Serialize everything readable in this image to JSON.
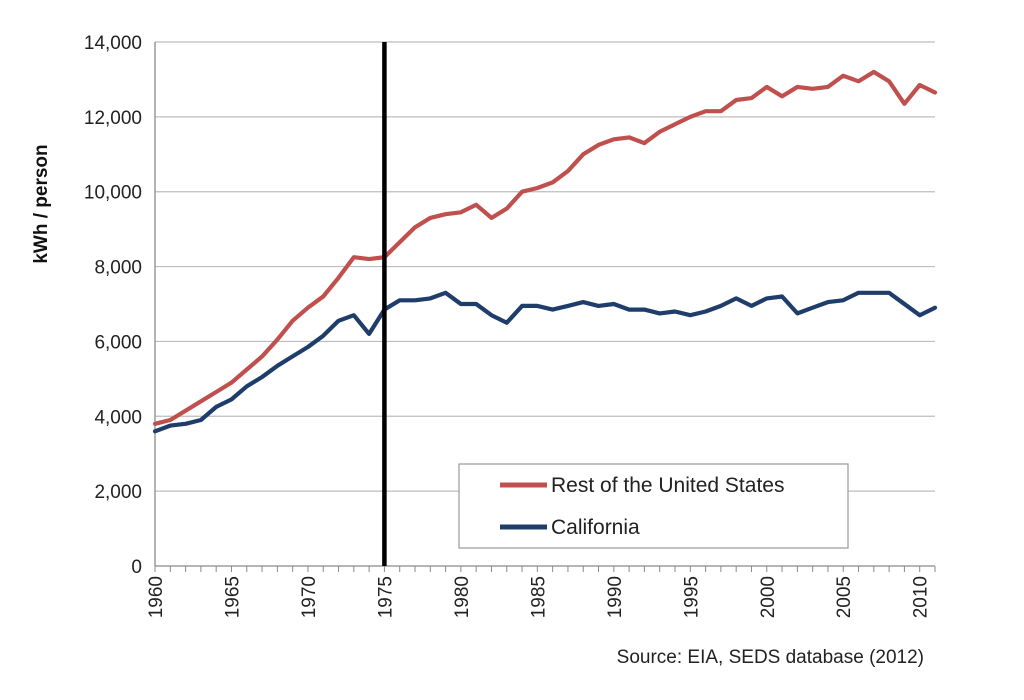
{
  "chart_data": {
    "type": "line",
    "title": "",
    "xlabel": "",
    "ylabel": "kWh / person",
    "xlim": [
      1960,
      2011
    ],
    "ylim": [
      0,
      14000
    ],
    "grid": "horizontal",
    "legend_position": "bottom-right",
    "x_ticks": [
      1960,
      1965,
      1970,
      1975,
      1980,
      1985,
      1990,
      1995,
      2000,
      2005,
      2010
    ],
    "x_tick_labels": [
      "1960",
      "1965",
      "1970",
      "1975",
      "1980",
      "1985",
      "1990",
      "1995",
      "2000",
      "2005",
      "2010"
    ],
    "y_ticks": [
      0,
      2000,
      4000,
      6000,
      8000,
      10000,
      12000,
      14000
    ],
    "y_tick_labels": [
      "0",
      "2,000",
      "4,000",
      "6,000",
      "8,000",
      "10,000",
      "12,000",
      "14,000"
    ],
    "reference_line": {
      "x": 1975,
      "color": "#000000"
    },
    "x": [
      1960,
      1961,
      1962,
      1963,
      1964,
      1965,
      1966,
      1967,
      1968,
      1969,
      1970,
      1971,
      1972,
      1973,
      1974,
      1975,
      1976,
      1977,
      1978,
      1979,
      1980,
      1981,
      1982,
      1983,
      1984,
      1985,
      1986,
      1987,
      1988,
      1989,
      1990,
      1991,
      1992,
      1993,
      1994,
      1995,
      1996,
      1997,
      1998,
      1999,
      2000,
      2001,
      2002,
      2003,
      2004,
      2005,
      2006,
      2007,
      2008,
      2009,
      2010,
      2011
    ],
    "series": [
      {
        "name": "Rest of the United States",
        "color": "#c0504d",
        "values": [
          3800,
          3900,
          4150,
          4400,
          4650,
          4900,
          5250,
          5600,
          6050,
          6550,
          6900,
          7200,
          7700,
          8250,
          8200,
          8250,
          8650,
          9050,
          9300,
          9400,
          9450,
          9650,
          9300,
          9550,
          10000,
          10100,
          10250,
          10550,
          11000,
          11250,
          11400,
          11450,
          11300,
          11600,
          11800,
          12000,
          12150,
          12150,
          12450,
          12500,
          12800,
          12550,
          12800,
          12750,
          12800,
          13100,
          12950,
          13200,
          12950,
          12350,
          12850,
          12650
        ]
      },
      {
        "name": "California",
        "color": "#1f3d6b",
        "values": [
          3600,
          3750,
          3800,
          3900,
          4250,
          4450,
          4800,
          5050,
          5350,
          5600,
          5850,
          6150,
          6550,
          6700,
          6200,
          6850,
          7100,
          7100,
          7150,
          7300,
          7000,
          7000,
          6700,
          6500,
          6950,
          6950,
          6850,
          6950,
          7050,
          6950,
          7000,
          6850,
          6850,
          6750,
          6800,
          6700,
          6800,
          6950,
          7150,
          6950,
          7150,
          7200,
          6750,
          6900,
          7050,
          7100,
          7300,
          7300,
          7300,
          7000,
          6700,
          6900
        ]
      }
    ],
    "source_note": "Source: EIA, SEDS database (2012)"
  }
}
